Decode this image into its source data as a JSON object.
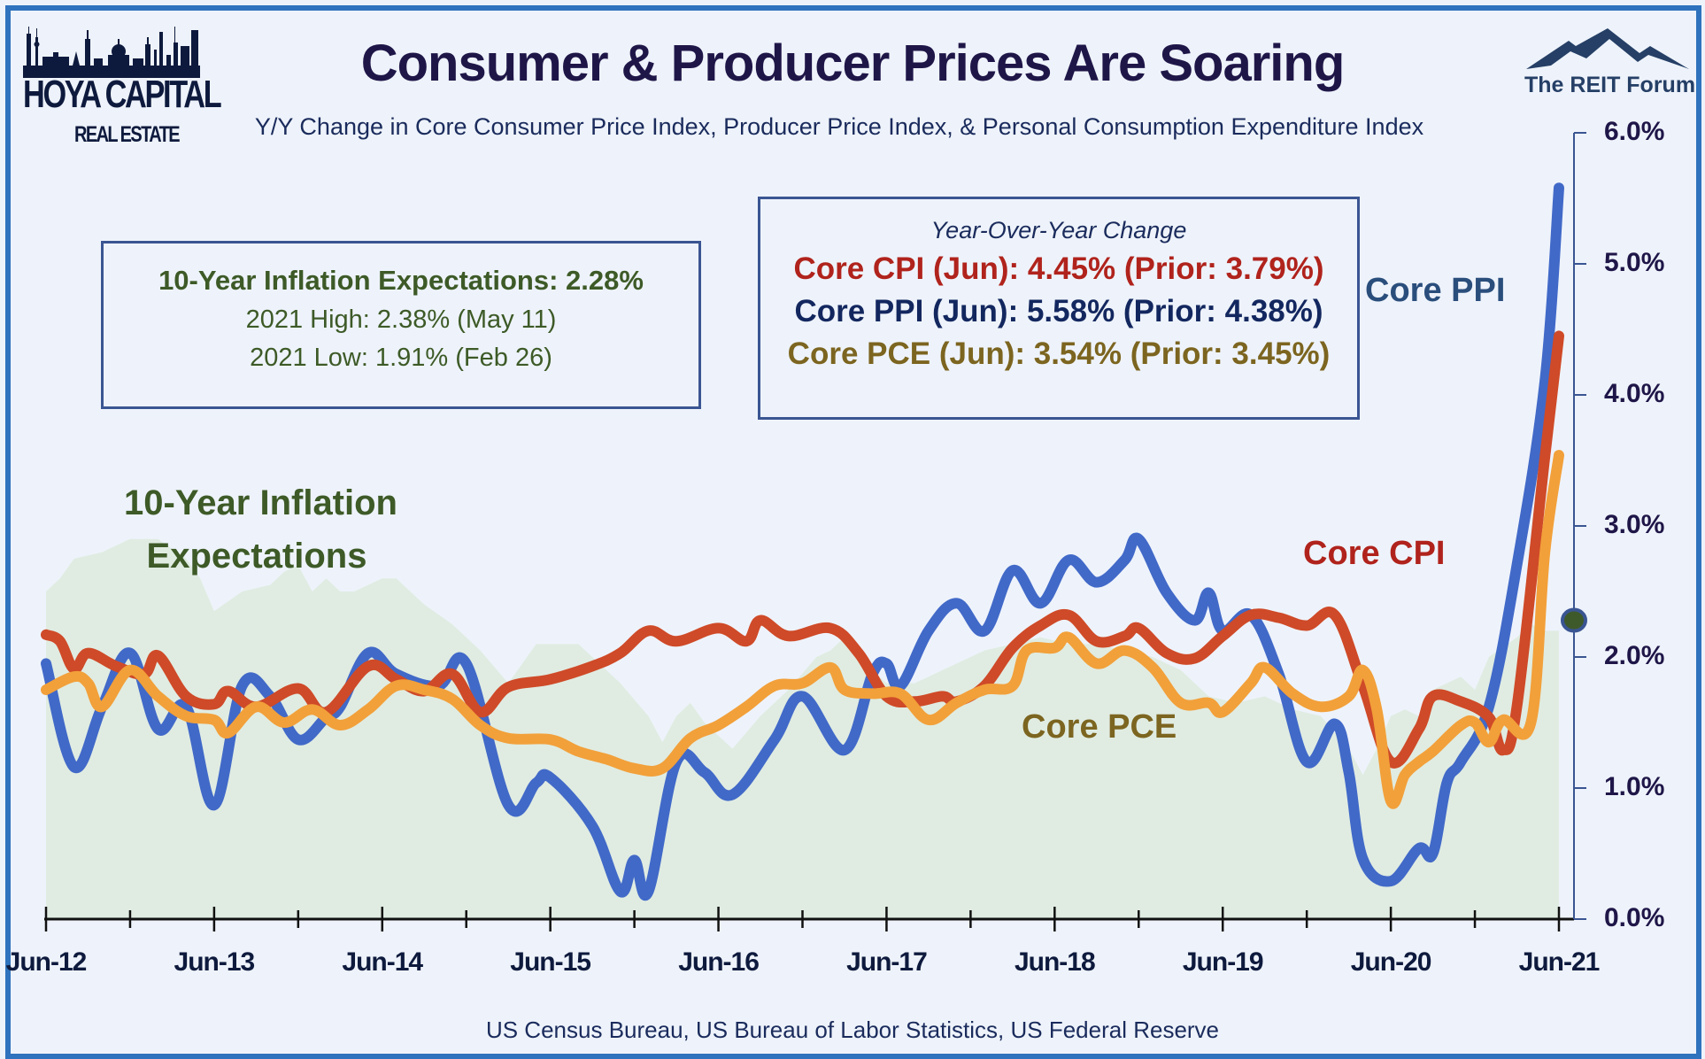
{
  "branding": {
    "left_logo_line1": "HOYA CAPITAL",
    "left_logo_line2": "REAL ESTATE",
    "right_logo": "The REIT Forum"
  },
  "inflation_box": {
    "headline": "10-Year Inflation Expectations: 2.28%",
    "high": "2021 High: 2.38% (May 11)",
    "low": "2021 Low: 1.91% (Feb 26)"
  },
  "yoy_box": {
    "heading": "Year-Over-Year Change",
    "cpi": "Core CPI (Jun): 4.45% (Prior: 3.79%)",
    "ppi": "Core PPI (Jun): 5.58% (Prior: 4.38%)",
    "pce": "Core PCE (Jun): 3.54% (Prior: 3.45%)"
  },
  "series_labels": {
    "inflation_line1": "10-Year Inflation",
    "inflation_line2": "Expectations",
    "ppi": "Core PPI",
    "cpi": "Core CPI",
    "pce": "Core PCE"
  },
  "colors": {
    "ppi": "#4169c8",
    "cpi": "#cf4a28",
    "pce": "#f2a03a",
    "inflation_area": "#e0ece2",
    "inflation_marker": "#3f5a2a",
    "frame": "#2f72bd"
  },
  "source": "US Census Bureau, US Bureau of Labor Statistics, US Federal Reserve",
  "chart_data": {
    "type": "line",
    "title": "Consumer & Producer Prices Are Soaring",
    "subtitle": "Y/Y Change in Core Consumer Price Index, Producer Price Index, & Personal Consumption Expenditure Index",
    "xlabel": "",
    "ylabel": "",
    "x_start": "2012-06",
    "x_end": "2021-06",
    "x_unit": "months since Jun-12",
    "xticks": [
      "Jun-12",
      "Jun-13",
      "Jun-14",
      "Jun-15",
      "Jun-16",
      "Jun-17",
      "Jun-18",
      "Jun-19",
      "Jun-20",
      "Jun-21"
    ],
    "yticks": [
      "0.0%",
      "1.0%",
      "2.0%",
      "3.0%",
      "4.0%",
      "5.0%",
      "6.0%"
    ],
    "ylim": [
      0,
      6
    ],
    "y_axis_side": "right",
    "grid": false,
    "legend": "inline labels",
    "series": [
      {
        "name": "10-Year Inflation Expectations",
        "kind": "area",
        "months": [
          0,
          1,
          2,
          4,
          6,
          8,
          10,
          11,
          12,
          14,
          16,
          17,
          18,
          19,
          20,
          21,
          22,
          24,
          25,
          27,
          29,
          31,
          33,
          34,
          35,
          38,
          39,
          41,
          43,
          44,
          45,
          46,
          47,
          49,
          51,
          53,
          55,
          56,
          57,
          58,
          60,
          62,
          63,
          65,
          67,
          69,
          71,
          73,
          75,
          77,
          79,
          81,
          83,
          85,
          87,
          89,
          91,
          93,
          94,
          95,
          96,
          97,
          98,
          99,
          101,
          102,
          103,
          105,
          106,
          107,
          108
        ],
        "values": [
          2.5,
          2.6,
          2.75,
          2.8,
          2.9,
          2.9,
          2.75,
          2.6,
          2.35,
          2.5,
          2.55,
          2.65,
          2.7,
          2.5,
          2.6,
          2.5,
          2.5,
          2.6,
          2.6,
          2.4,
          2.25,
          2.05,
          1.8,
          1.95,
          2.1,
          2.1,
          2.0,
          1.8,
          1.55,
          1.35,
          1.55,
          1.65,
          1.5,
          1.3,
          1.55,
          1.75,
          2.0,
          2.05,
          2.15,
          2.0,
          1.8,
          1.8,
          1.85,
          1.95,
          2.05,
          2.1,
          2.15,
          2.1,
          2.1,
          2.05,
          2.0,
          1.9,
          1.7,
          1.65,
          1.7,
          1.6,
          1.55,
          1.3,
          1.1,
          1.3,
          1.55,
          1.6,
          1.55,
          1.75,
          1.85,
          1.75,
          2.0,
          2.15,
          2.25,
          2.2,
          2.2
        ],
        "latest_marker": 2.28
      },
      {
        "name": "Core PPI",
        "kind": "line",
        "months": [
          0,
          2,
          4,
          6,
          8,
          10,
          12,
          14,
          16,
          18,
          20,
          21,
          23,
          25,
          28,
          30,
          33,
          35,
          36,
          39,
          41,
          42,
          43,
          45,
          47,
          49,
          52,
          54,
          57,
          59,
          60,
          61,
          63,
          65,
          67,
          69,
          71,
          73,
          75,
          77,
          78,
          80,
          82,
          83,
          84,
          86,
          88,
          90,
          92,
          93,
          94,
          96,
          98,
          99,
          100,
          101,
          103,
          105,
          107,
          108
        ],
        "values": [
          1.95,
          1.16,
          1.62,
          2.03,
          1.45,
          1.62,
          0.87,
          1.78,
          1.7,
          1.37,
          1.54,
          1.62,
          2.03,
          1.87,
          1.78,
          1.95,
          0.87,
          1.04,
          1.08,
          0.71,
          0.21,
          0.45,
          0.21,
          1.2,
          1.12,
          0.95,
          1.37,
          1.7,
          1.29,
          1.87,
          1.95,
          1.78,
          2.2,
          2.41,
          2.2,
          2.66,
          2.41,
          2.74,
          2.57,
          2.74,
          2.9,
          2.49,
          2.28,
          2.49,
          2.2,
          2.32,
          1.87,
          1.2,
          1.49,
          1.12,
          0.46,
          0.29,
          0.54,
          0.5,
          1.04,
          1.2,
          1.62,
          2.7,
          4.11,
          5.58
        ]
      },
      {
        "name": "Core CPI",
        "kind": "line",
        "months": [
          0,
          1,
          2,
          3,
          5,
          7,
          8,
          10,
          12,
          13,
          15,
          18,
          20,
          23,
          25,
          27,
          29,
          31,
          33,
          36,
          39,
          41,
          43,
          45,
          48,
          50,
          51,
          53,
          56,
          58,
          60,
          62,
          64,
          65,
          67,
          69,
          71,
          73,
          75,
          77,
          78,
          80,
          82,
          84,
          86,
          88,
          90,
          92,
          94,
          96,
          98,
          99,
          101,
          103,
          104,
          105,
          107,
          108
        ],
        "values": [
          2.17,
          2.12,
          1.91,
          2.03,
          1.93,
          1.87,
          2.01,
          1.7,
          1.64,
          1.74,
          1.62,
          1.76,
          1.58,
          1.93,
          1.83,
          1.74,
          1.87,
          1.58,
          1.77,
          1.83,
          1.93,
          2.03,
          2.2,
          2.12,
          2.22,
          2.12,
          2.28,
          2.16,
          2.22,
          2.03,
          1.7,
          1.66,
          1.7,
          1.66,
          1.78,
          2.07,
          2.24,
          2.32,
          2.12,
          2.16,
          2.22,
          2.03,
          1.99,
          2.16,
          2.32,
          2.3,
          2.24,
          2.32,
          1.78,
          1.2,
          1.45,
          1.7,
          1.66,
          1.54,
          1.29,
          1.62,
          3.53,
          4.45
        ]
      },
      {
        "name": "Core PCE",
        "kind": "line",
        "months": [
          0,
          2,
          3,
          4,
          6,
          8,
          10,
          12,
          13,
          15,
          17,
          19,
          21,
          23,
          25,
          27,
          29,
          31,
          33,
          36,
          38,
          40,
          42,
          44,
          46,
          48,
          50,
          52,
          54,
          56,
          57,
          59,
          61,
          63,
          65,
          67,
          69,
          70,
          72,
          73,
          75,
          77,
          79,
          81,
          83,
          84,
          86,
          87,
          89,
          91,
          93,
          94,
          95,
          96,
          97,
          98,
          99,
          101,
          102,
          103,
          104,
          106,
          107,
          108
        ],
        "values": [
          1.75,
          1.85,
          1.8,
          1.62,
          1.9,
          1.7,
          1.55,
          1.52,
          1.42,
          1.62,
          1.5,
          1.6,
          1.48,
          1.6,
          1.78,
          1.75,
          1.68,
          1.48,
          1.38,
          1.37,
          1.28,
          1.22,
          1.15,
          1.15,
          1.38,
          1.48,
          1.62,
          1.78,
          1.8,
          1.92,
          1.75,
          1.72,
          1.72,
          1.52,
          1.65,
          1.75,
          1.78,
          2.05,
          2.07,
          2.15,
          1.95,
          2.05,
          1.92,
          1.65,
          1.65,
          1.58,
          1.8,
          1.92,
          1.72,
          1.62,
          1.7,
          1.9,
          1.6,
          0.9,
          1.1,
          1.2,
          1.28,
          1.48,
          1.5,
          1.35,
          1.52,
          1.5,
          2.8,
          3.54
        ]
      }
    ]
  }
}
